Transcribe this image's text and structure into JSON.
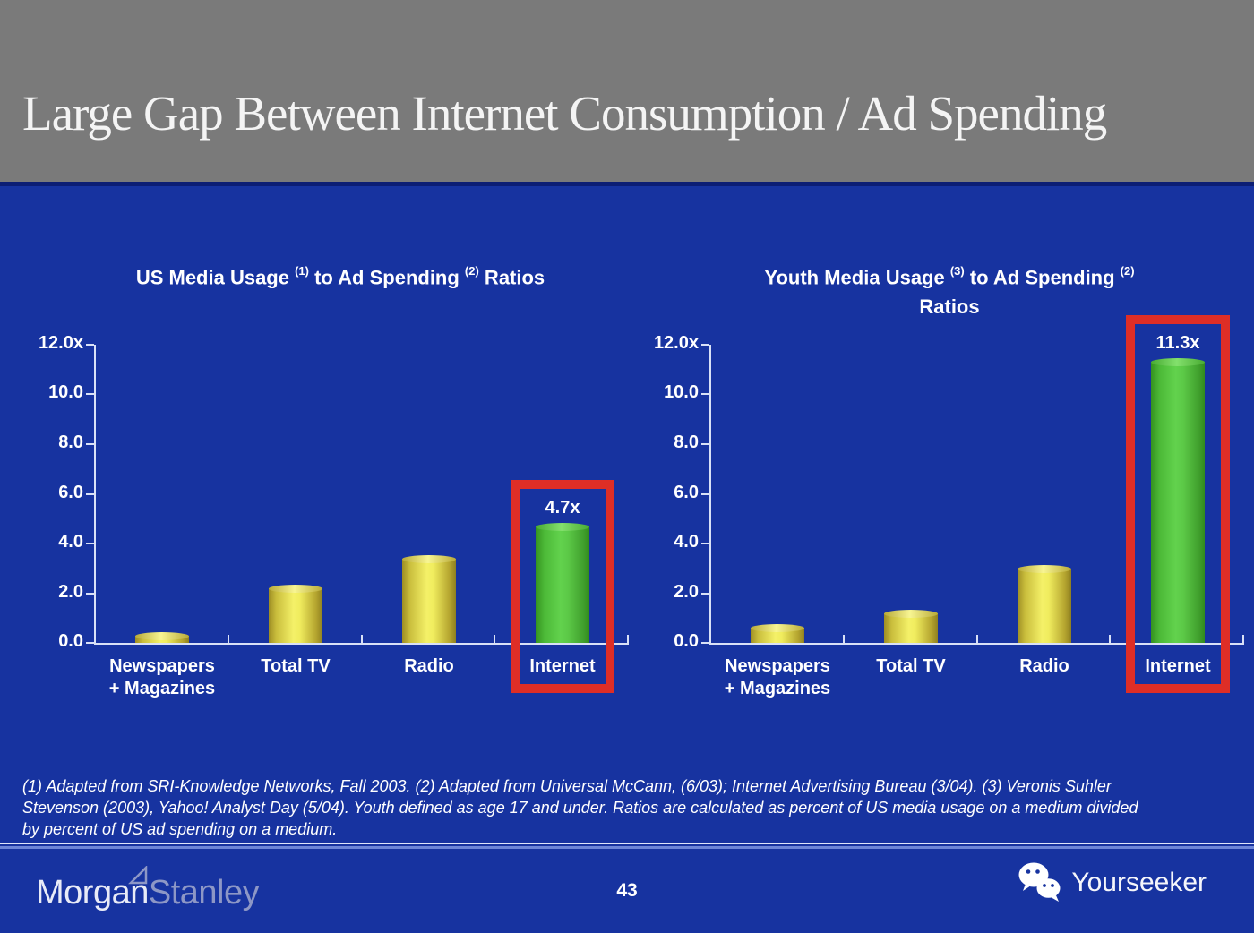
{
  "slide": {
    "title": "Large Gap Between Internet Consumption / Ad Spending",
    "page_number": "43",
    "footnote_lines": [
      "(1) Adapted from SRI-Knowledge Networks, Fall 2003.  (2) Adapted from Universal McCann, (6/03); Internet Advertising Bureau (3/04). (3) Veronis Suhler",
      "Stevenson (2003), Yahoo! Analyst Day (5/04).  Youth defined as age 17 and under.  Ratios are calculated as percent of US media usage on a medium divided",
      "by percent of US ad spending on a medium."
    ]
  },
  "branding": {
    "logo_part1": "Morgan",
    "logo_part2": "Stanley",
    "watermark_label": "Yourseeker",
    "watermark_icon": "wechat-icon",
    "logo_icon": "triangle-flag-icon"
  },
  "colors": {
    "header_gray": "#7a7a7a",
    "background_blue": "#1733a0",
    "bar_yellow": "#f4f168",
    "bar_yellow_edge": "#9d8d24",
    "bar_green": "#62d24d",
    "bar_green_edge": "#35921f",
    "highlight_red": "#de2e26",
    "axis_color": "#d9e1f7",
    "text_white": "#ffffff"
  },
  "chart_data": [
    {
      "id": "us",
      "type": "bar",
      "title": "US Media Usage (1) to Ad Spending (2) Ratios",
      "title_segments": [
        {
          "text": "US Media Usage "
        },
        {
          "sup": "(1)"
        },
        {
          "text": " to Ad Spending "
        },
        {
          "sup": "(2)"
        },
        {
          "text": " Ratios"
        }
      ],
      "categories": [
        [
          "Newspapers",
          "+ Magazines"
        ],
        [
          "Total TV"
        ],
        [
          "Radio"
        ],
        [
          "Internet"
        ]
      ],
      "values": [
        0.3,
        2.2,
        3.4,
        4.7
      ],
      "bar_styles": [
        "yellow",
        "yellow",
        "yellow",
        "green"
      ],
      "data_labels": [
        "",
        "",
        "",
        "4.7x"
      ],
      "highlight_index": 3,
      "ylim": [
        0,
        12
      ],
      "ytick_labels": [
        "12.0x",
        "10.0",
        "8.0",
        "6.0",
        "4.0",
        "2.0",
        "0.0"
      ],
      "grid": false,
      "legend": "none",
      "xlabel": "",
      "ylabel": ""
    },
    {
      "id": "youth",
      "type": "bar",
      "title": "Youth Media Usage (3) to Ad Spending (2) Ratios",
      "title_segments": [
        {
          "text": "Youth Media Usage "
        },
        {
          "sup": "(3)"
        },
        {
          "text": " to Ad Spending "
        },
        {
          "sup": "(2)"
        },
        {
          "break": true
        },
        {
          "text": "Ratios"
        }
      ],
      "categories": [
        [
          "Newspapers",
          "+ Magazines"
        ],
        [
          "Total TV"
        ],
        [
          "Radio"
        ],
        [
          "Internet"
        ]
      ],
      "values": [
        0.6,
        1.2,
        3.0,
        11.3
      ],
      "bar_styles": [
        "yellow",
        "yellow",
        "yellow",
        "green"
      ],
      "data_labels": [
        "",
        "",
        "",
        "11.3x"
      ],
      "highlight_index": 3,
      "ylim": [
        0,
        12
      ],
      "ytick_labels": [
        "12.0x",
        "10.0",
        "8.0",
        "6.0",
        "4.0",
        "2.0",
        "0.0"
      ],
      "grid": false,
      "legend": "none",
      "xlabel": "",
      "ylabel": ""
    }
  ]
}
